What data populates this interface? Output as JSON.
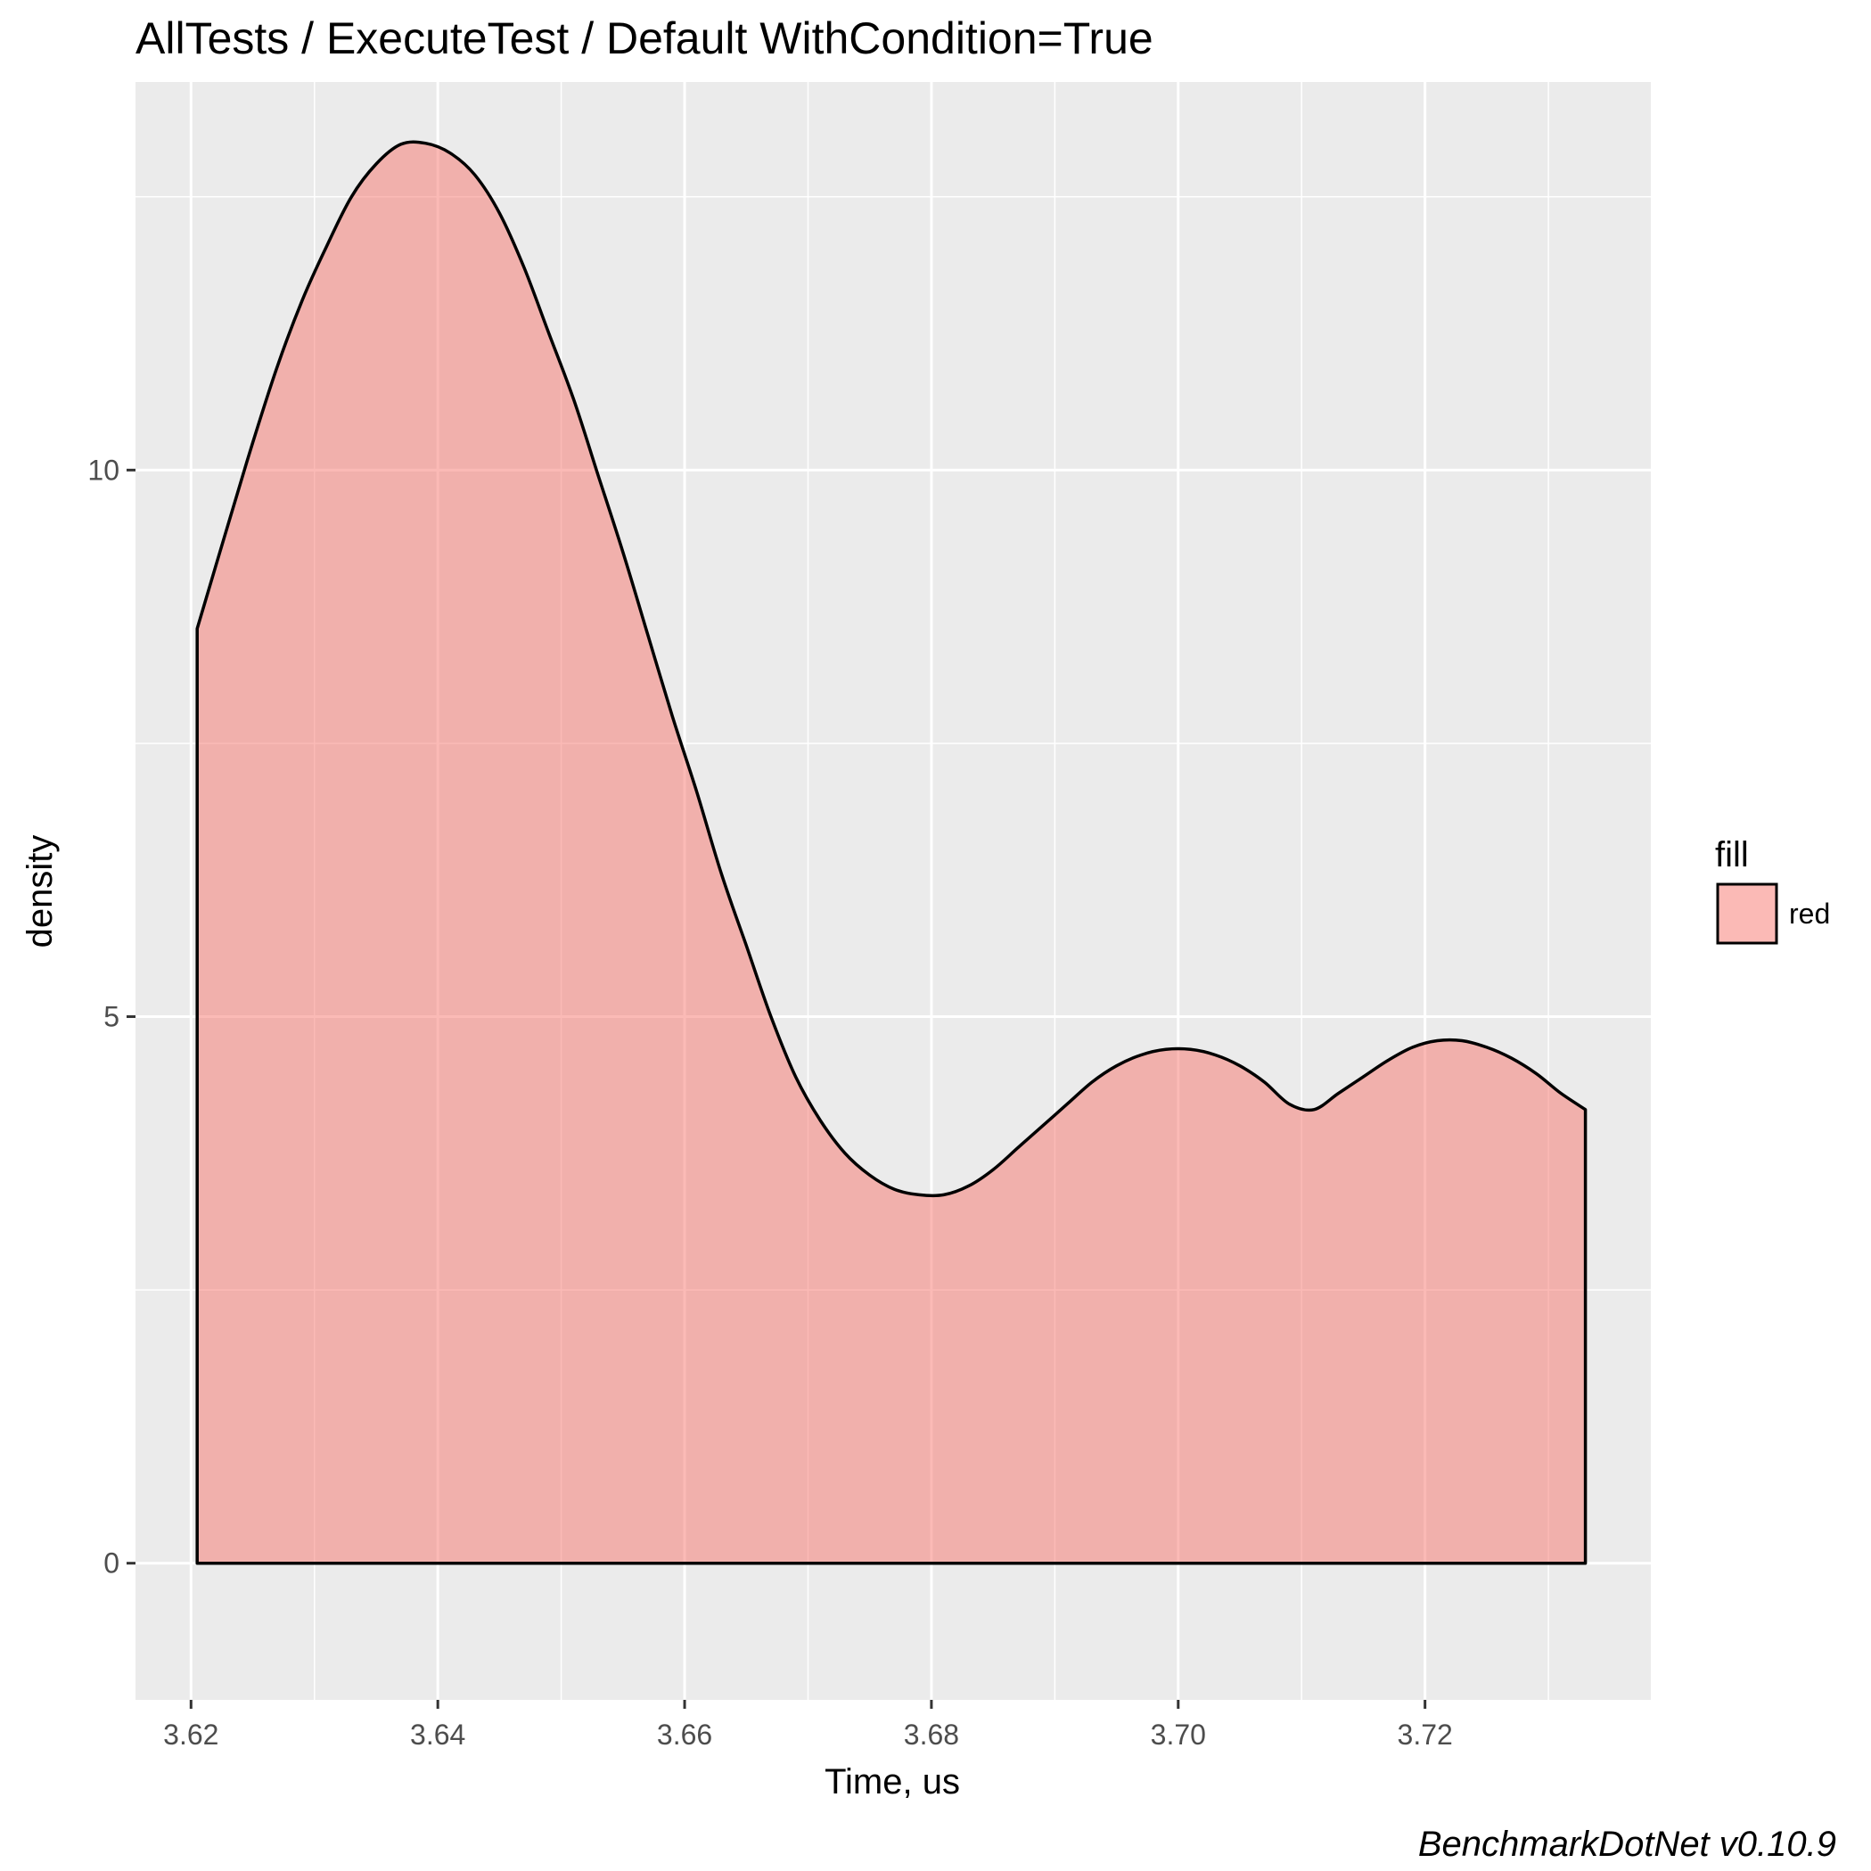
{
  "chart_data": {
    "type": "area",
    "title": "AllTests / ExecuteTest / Default WithCondition=True",
    "xlabel": "Time, us",
    "ylabel": "density",
    "xlim": [
      3.6155,
      3.7383
    ],
    "ylim": [
      -1.25,
      13.55
    ],
    "x_ticks": [
      3.62,
      3.64,
      3.66,
      3.68,
      3.7,
      3.72
    ],
    "x_tick_labels": [
      "3.62",
      "3.64",
      "3.66",
      "3.68",
      "3.70",
      "3.72"
    ],
    "y_ticks": [
      0,
      5,
      10
    ],
    "y_tick_labels": [
      "0",
      "5",
      "10"
    ],
    "grid": true,
    "legend": {
      "title": "fill",
      "position": "right",
      "entries": [
        {
          "label": "red",
          "color": "#f8766d"
        }
      ]
    },
    "caption": "BenchmarkDotNet v0.10.9",
    "panel_background": "#ebebeb",
    "fill_color": "#f8766d",
    "fill_opacity": 0.5,
    "outline_color": "#000000",
    "series": [
      {
        "x": [
          3.6205,
          3.623,
          3.625,
          3.627,
          3.629,
          3.631,
          3.633,
          3.635,
          3.637,
          3.639,
          3.641,
          3.643,
          3.645,
          3.647,
          3.649,
          3.651,
          3.653,
          3.655,
          3.657,
          3.659,
          3.661,
          3.663,
          3.665,
          3.667,
          3.669,
          3.671,
          3.673,
          3.675,
          3.677,
          3.679,
          3.681,
          3.683,
          3.685,
          3.687,
          3.689,
          3.691,
          3.693,
          3.695,
          3.697,
          3.699,
          3.701,
          3.703,
          3.705,
          3.707,
          3.709,
          3.711,
          3.713,
          3.715,
          3.717,
          3.719,
          3.721,
          3.723,
          3.725,
          3.727,
          3.729,
          3.731,
          3.733
        ],
        "y": [
          8.55,
          9.5,
          10.25,
          10.95,
          11.55,
          12.05,
          12.5,
          12.8,
          12.98,
          12.99,
          12.9,
          12.7,
          12.35,
          11.85,
          11.25,
          10.65,
          9.95,
          9.25,
          8.5,
          7.75,
          7.05,
          6.3,
          5.65,
          5.0,
          4.45,
          4.05,
          3.75,
          3.55,
          3.42,
          3.37,
          3.37,
          3.45,
          3.6,
          3.8,
          4.0,
          4.2,
          4.4,
          4.55,
          4.65,
          4.7,
          4.7,
          4.65,
          4.55,
          4.4,
          4.2,
          4.15,
          4.3,
          4.45,
          4.6,
          4.72,
          4.78,
          4.78,
          4.72,
          4.62,
          4.48,
          4.3,
          4.15
        ]
      }
    ]
  }
}
